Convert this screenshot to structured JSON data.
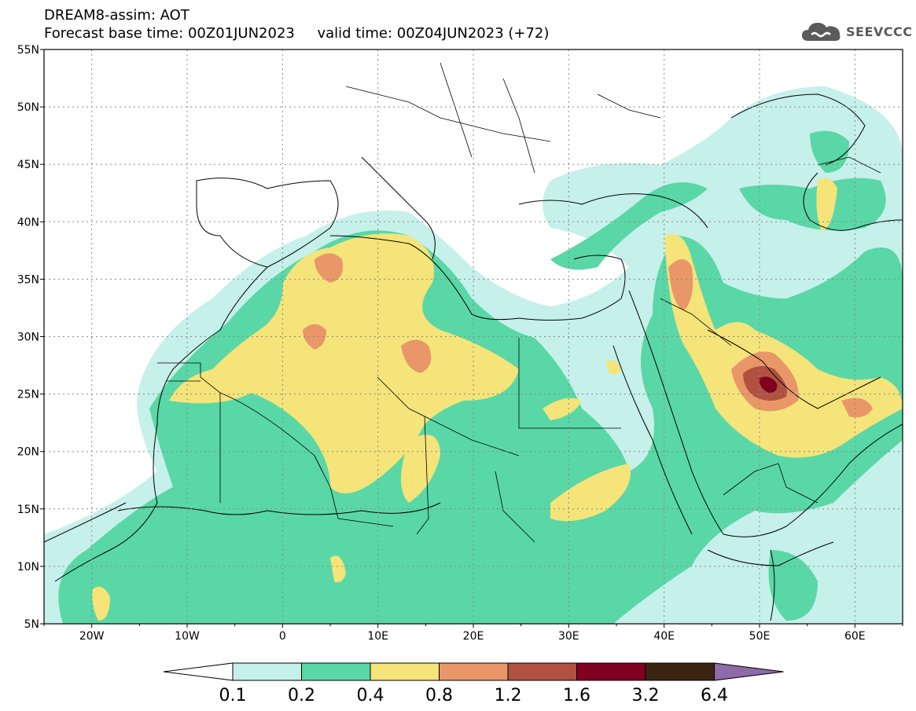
{
  "header": {
    "line1": "DREAM8-assim: AOT",
    "line2": "Forecast base time: 00Z01JUN2023     valid time: 00Z04JUN2023 (+72)"
  },
  "logo": {
    "text": "SEEVCCC",
    "icon": "cloud-icon"
  },
  "map": {
    "lon_range": [
      -25,
      65
    ],
    "lat_range": [
      5,
      55
    ],
    "lat_ticks": [
      {
        "value": 55,
        "label": "55N"
      },
      {
        "value": 50,
        "label": "50N"
      },
      {
        "value": 45,
        "label": "45N"
      },
      {
        "value": 40,
        "label": "40N"
      },
      {
        "value": 35,
        "label": "35N"
      },
      {
        "value": 30,
        "label": "30N"
      },
      {
        "value": 25,
        "label": "25N"
      },
      {
        "value": 20,
        "label": "20N"
      },
      {
        "value": 15,
        "label": "15N"
      },
      {
        "value": 10,
        "label": "10N"
      },
      {
        "value": 5,
        "label": "5N"
      }
    ],
    "lon_ticks": [
      {
        "value": -20,
        "label": "20W"
      },
      {
        "value": -10,
        "label": "10W"
      },
      {
        "value": 0,
        "label": "0"
      },
      {
        "value": 10,
        "label": "10E"
      },
      {
        "value": 20,
        "label": "20E"
      },
      {
        "value": 30,
        "label": "30E"
      },
      {
        "value": 40,
        "label": "40E"
      },
      {
        "value": 50,
        "label": "50E"
      },
      {
        "value": 60,
        "label": "60E"
      }
    ],
    "grid": "dotted"
  },
  "colorbar": {
    "labels": [
      "0.1",
      "0.2",
      "0.4",
      "0.8",
      "1.2",
      "1.6",
      "3.2",
      "6.4"
    ],
    "under_color": "#ffffff",
    "colors": [
      "#c6f0ea",
      "#5ad7a6",
      "#f4e47a",
      "#e99768",
      "#b0523f",
      "#800020",
      "#3b2412"
    ],
    "over_color": "#8e6aa8"
  }
}
